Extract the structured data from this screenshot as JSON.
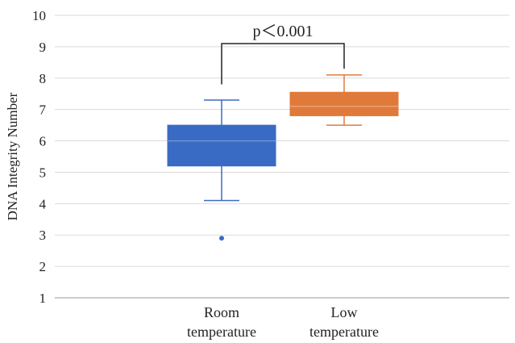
{
  "chart_data": {
    "type": "box",
    "ylabel": "DNA Integrity Number",
    "ylim": [
      1,
      10
    ],
    "yticks": [
      "1",
      "2",
      "3",
      "4",
      "5",
      "6",
      "7",
      "8",
      "9",
      "10"
    ],
    "grid": true,
    "categories": [
      {
        "line1": "Room",
        "line2": "temperature"
      },
      {
        "line1": "Low",
        "line2": "temperature"
      }
    ],
    "boxes": [
      {
        "category": "Room temperature",
        "color": "#3a6bc4",
        "whisker_low": 4.1,
        "q1": 5.2,
        "median": 6.0,
        "q3": 6.5,
        "whisker_high": 7.3,
        "outliers": [
          2.9
        ]
      },
      {
        "category": "Low temperature",
        "color": "#e07a3a",
        "whisker_low": 6.5,
        "q1": 6.8,
        "median": 7.1,
        "q3": 7.55,
        "whisker_high": 8.1,
        "outliers": []
      }
    ],
    "annotation": {
      "text": "p＜0.001",
      "bracket_left": 7.8,
      "bracket_right": 8.3,
      "bracket_top": 9.1
    }
  }
}
